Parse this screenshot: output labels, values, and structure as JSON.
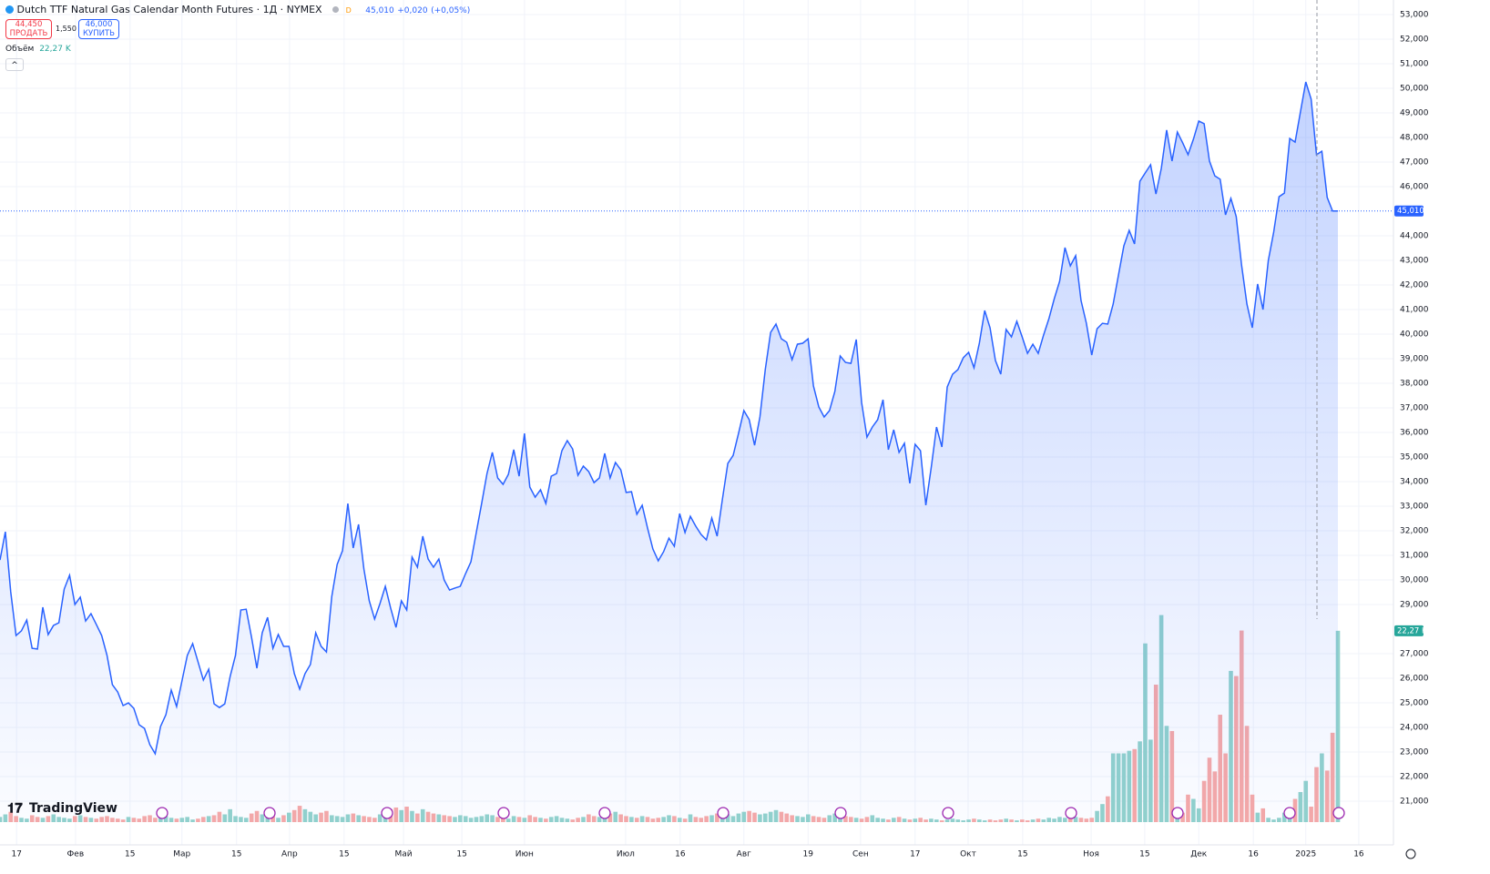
{
  "header": {
    "title": "Dutch TTF Natural Gas Calendar Month Futures · 1Д · NYMEX",
    "flag": "D",
    "last": "45,010",
    "change": "+0,020",
    "change_pct": "(+0,05%)",
    "sell": {
      "price": "44,450",
      "label": "ПРОДАТЬ"
    },
    "spread": "1,550",
    "buy": {
      "price": "46,000",
      "label": "КУПИТЬ"
    },
    "collapse": "^"
  },
  "logo": "TradingView",
  "chart_data": {
    "type": "area",
    "xlim": [
      0,
      259.7
    ],
    "xticks": [
      {
        "value": 3.1,
        "label": "17"
      },
      {
        "value": 14.1,
        "label": "Фев"
      },
      {
        "value": 24.3,
        "label": "15"
      },
      {
        "value": 34.0,
        "label": "Мар"
      },
      {
        "value": 44.2,
        "label": "15"
      },
      {
        "value": 54.1,
        "label": "Апр"
      },
      {
        "value": 64.3,
        "label": "15"
      },
      {
        "value": 75.4,
        "label": "Май"
      },
      {
        "value": 86.3,
        "label": "15"
      },
      {
        "value": 98.0,
        "label": "Июн"
      },
      {
        "value": 116.9,
        "label": "Июл"
      },
      {
        "value": 127.1,
        "label": "16"
      },
      {
        "value": 139.0,
        "label": "Авг"
      },
      {
        "value": 151.0,
        "label": "19"
      },
      {
        "value": 160.8,
        "label": "Сен"
      },
      {
        "value": 171.0,
        "label": "17"
      },
      {
        "value": 180.9,
        "label": "Окт"
      },
      {
        "value": 191.1,
        "label": "15"
      },
      {
        "value": 203.9,
        "label": "Ноя"
      },
      {
        "value": 213.9,
        "label": "15"
      },
      {
        "value": 224.0,
        "label": "Дек"
      },
      {
        "value": 234.2,
        "label": "16"
      },
      {
        "value": 244.0,
        "label": "2025"
      },
      {
        "value": 253.9,
        "label": "16"
      }
    ],
    "ylim": [
      20150,
      53000
    ],
    "yticks": [
      {
        "value": 53000,
        "label": "53,000"
      },
      {
        "value": 52000,
        "label": "52,000"
      },
      {
        "value": 51000,
        "label": "51,000"
      },
      {
        "value": 50000,
        "label": "50,000"
      },
      {
        "value": 49000,
        "label": "49,000"
      },
      {
        "value": 48000,
        "label": "48,000"
      },
      {
        "value": 47000,
        "label": "47,000"
      },
      {
        "value": 46000,
        "label": "46,000"
      },
      {
        "value": 44000,
        "label": "44,000"
      },
      {
        "value": 43000,
        "label": "43,000"
      },
      {
        "value": 42000,
        "label": "42,000"
      },
      {
        "value": 41000,
        "label": "41,000"
      },
      {
        "value": 40000,
        "label": "40,000"
      },
      {
        "value": 39000,
        "label": "39,000"
      },
      {
        "value": 38000,
        "label": "38,000"
      },
      {
        "value": 37000,
        "label": "37,000"
      },
      {
        "value": 36000,
        "label": "36,000"
      },
      {
        "value": 35000,
        "label": "35,000"
      },
      {
        "value": 34000,
        "label": "34,000"
      },
      {
        "value": 33000,
        "label": "33,000"
      },
      {
        "value": 32000,
        "label": "32,000"
      },
      {
        "value": 31000,
        "label": "31,000"
      },
      {
        "value": 30000,
        "label": "30,000"
      },
      {
        "value": 29000,
        "label": "29,000"
      },
      {
        "value": 27000,
        "label": "27,000"
      },
      {
        "value": 26000,
        "label": "26,000"
      },
      {
        "value": 25000,
        "label": "25,000"
      },
      {
        "value": 24000,
        "label": "24,000"
      },
      {
        "value": 23000,
        "label": "23,000"
      },
      {
        "value": 22000,
        "label": "22,000"
      },
      {
        "value": 21000,
        "label": "21,000"
      }
    ],
    "y2lim": [
      0,
      94000
    ],
    "grid": true,
    "series": [
      {
        "name": "Dutch TTF",
        "color": "#2962ff",
        "last_label": "45,010",
        "values": [
          30810,
          31960,
          29520,
          27740,
          27930,
          28370,
          27220,
          27190,
          28890,
          27780,
          28150,
          28260,
          29630,
          30190,
          29000,
          29300,
          28330,
          28630,
          28190,
          27740,
          26930,
          25740,
          25440,
          24890,
          25000,
          24780,
          24110,
          23960,
          23300,
          22930,
          24040,
          24520,
          25520,
          24850,
          25890,
          26930,
          27410,
          26670,
          25930,
          26370,
          24960,
          24810,
          24960,
          26070,
          26930,
          28780,
          28810,
          27670,
          26410,
          27850,
          28480,
          27220,
          27780,
          27300,
          27300,
          26190,
          25560,
          26190,
          26560,
          27850,
          27300,
          27070,
          29330,
          30630,
          31190,
          33110,
          31300,
          32260,
          30440,
          29150,
          28410,
          29040,
          29740,
          28850,
          28070,
          29150,
          28780,
          30930,
          30520,
          31780,
          30850,
          30520,
          30850,
          30000,
          29590,
          29670,
          29740,
          30260,
          30740,
          31930,
          33110,
          34330,
          35190,
          34150,
          33890,
          34300,
          35300,
          34220,
          35960,
          33780,
          33370,
          33670,
          33110,
          34220,
          34330,
          35260,
          35670,
          35330,
          34260,
          34630,
          34410,
          33960,
          34150,
          35150,
          34150,
          34780,
          34480,
          33560,
          33590,
          32670,
          33040,
          32110,
          31260,
          30780,
          31150,
          31700,
          31370,
          32700,
          31930,
          32590,
          32190,
          31850,
          31630,
          32520,
          31780,
          33300,
          34740,
          35070,
          35960,
          36890,
          36520,
          35480,
          36630,
          38560,
          40070,
          40410,
          39810,
          39670,
          38960,
          39590,
          39630,
          39810,
          37890,
          37040,
          36630,
          36890,
          37670,
          39110,
          38850,
          38810,
          39780,
          37220,
          35810,
          36220,
          36520,
          37330,
          35300,
          36110,
          35190,
          35560,
          33930,
          35520,
          35260,
          33040,
          34560,
          36220,
          35410,
          37850,
          38370,
          38560,
          39040,
          39260,
          38630,
          39630,
          40960,
          40260,
          38930,
          38370,
          40190,
          39890,
          40520,
          39890,
          39220,
          39590,
          39220,
          39960,
          40630,
          41440,
          42150,
          43520,
          42780,
          43190,
          41370,
          40440,
          39150,
          40220,
          40440,
          40410,
          41220,
          42410,
          43590,
          44220,
          43670,
          46220,
          46560,
          46890,
          45700,
          46740,
          48300,
          47040,
          48220,
          47780,
          47300,
          47930,
          48670,
          48560,
          47040,
          46440,
          46300,
          44850,
          45520,
          44780,
          42810,
          41220,
          40260,
          42040,
          41000,
          43000,
          44150,
          45590,
          45740,
          47960,
          47810,
          49040,
          50260,
          49560,
          47300,
          47440,
          45560,
          45010,
          45010
        ]
      },
      {
        "name": "Объём",
        "axis": "y2",
        "up_color": "#92d2cc",
        "down_color": "#f7a9a7",
        "badge_color": "#26a69a",
        "last_label": "22,27 K",
        "values": [
          600,
          900,
          1200,
          700,
          500,
          400,
          800,
          600,
          500,
          700,
          900,
          600,
          500,
          400,
          700,
          800,
          600,
          500,
          400,
          600,
          700,
          500,
          400,
          300,
          600,
          500,
          400,
          700,
          800,
          500,
          600,
          700,
          500,
          400,
          500,
          600,
          300,
          400,
          600,
          700,
          800,
          1200,
          900,
          1500,
          700,
          600,
          500,
          1000,
          1300,
          900,
          600,
          700,
          500,
          800,
          1100,
          1400,
          1900,
          1500,
          1200,
          900,
          1100,
          1300,
          800,
          700,
          600,
          900,
          1000,
          800,
          700,
          600,
          500,
          900,
          1200,
          1500,
          1700,
          1400,
          1800,
          1300,
          1000,
          1500,
          1200,
          1000,
          900,
          800,
          700,
          600,
          800,
          700,
          500,
          600,
          700,
          900,
          800,
          600,
          500,
          400,
          700,
          600,
          500,
          800,
          600,
          500,
          400,
          600,
          700,
          500,
          400,
          300,
          500,
          600,
          900,
          700,
          600,
          800,
          1000,
          1200,
          900,
          700,
          600,
          500,
          700,
          600,
          400,
          500,
          600,
          800,
          700,
          500,
          400,
          900,
          600,
          500,
          700,
          800,
          1000,
          1100,
          900,
          700,
          1000,
          1200,
          1300,
          1100,
          900,
          1000,
          1200,
          1400,
          1200,
          1000,
          800,
          700,
          600,
          900,
          700,
          600,
          500,
          800,
          1000,
          900,
          700,
          600,
          500,
          400,
          600,
          800,
          500,
          400,
          300,
          500,
          600,
          400,
          300,
          400,
          500,
          300,
          400,
          300,
          200,
          300,
          400,
          300,
          200,
          300,
          400,
          300,
          200,
          300,
          200,
          300,
          400,
          300,
          200,
          300,
          200,
          300,
          400,
          300,
          500,
          400,
          600,
          500,
          700,
          600,
          500,
          400,
          500,
          1300,
          2100,
          3000,
          8000,
          8000,
          8000,
          8300,
          8500,
          9400,
          20800,
          9600,
          16000,
          24100,
          11200,
          10600,
          500,
          1100,
          3200,
          2700,
          1600,
          4800,
          7500,
          5900,
          12500,
          8000,
          17600,
          17000,
          22300,
          11200,
          3200,
          1100,
          1600,
          500,
          300,
          500,
          1100,
          1600,
          2700,
          3500,
          4800,
          1800,
          6400,
          8000,
          6000,
          10400,
          22270
        ]
      }
    ]
  }
}
